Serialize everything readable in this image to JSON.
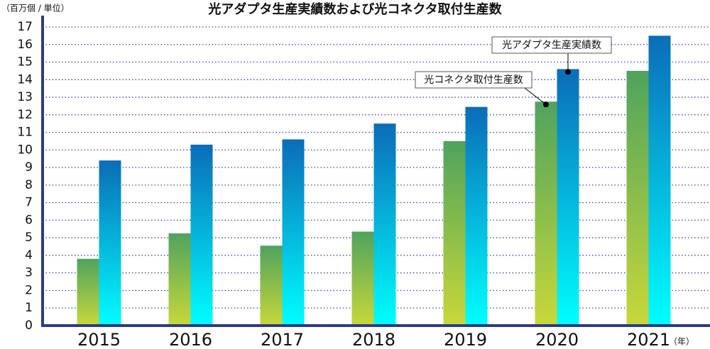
{
  "chart_data": {
    "type": "bar",
    "title": "光アダプタ生産実績数および光コネクタ取付生産数",
    "y_unit_label": "（百万個 / 単位）",
    "x_unit_label": "（年）",
    "categories": [
      "2015",
      "2016",
      "2017",
      "2018",
      "2019",
      "2020",
      "2021"
    ],
    "series": [
      {
        "name": "光コネクタ取付生産数",
        "color": "#4fa35e",
        "values": [
          3.8,
          5.25,
          4.55,
          5.35,
          10.5,
          12.75,
          14.5
        ]
      },
      {
        "name": "光アダプタ生産実績数",
        "color": "#0b6cb8",
        "values": [
          9.4,
          10.3,
          10.6,
          11.5,
          12.45,
          14.6,
          16.5
        ]
      }
    ],
    "ylim": [
      0,
      17
    ],
    "yticks": [
      0,
      1,
      2,
      3,
      4,
      5,
      6,
      7,
      8,
      9,
      10,
      11,
      12,
      13,
      14,
      15,
      16,
      17
    ],
    "grid": true
  }
}
